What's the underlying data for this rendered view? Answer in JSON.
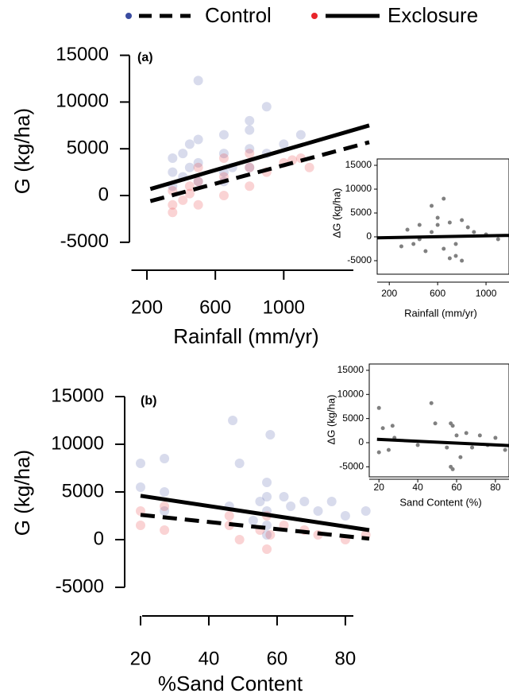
{
  "chart_data": [
    {
      "type": "scatter",
      "label": "(a)",
      "x_label": "Rainfall (mm/yr)",
      "y_label": "G (kg/ha)",
      "xlim": [
        100,
        1500
      ],
      "ylim": [
        -6000,
        15500
      ],
      "xticks": [
        200,
        600,
        1000
      ],
      "yticks": [
        -5000,
        0,
        5000,
        10000,
        15000
      ],
      "series": [
        {
          "name": "Control",
          "color": "#3a4ca0",
          "dash": true,
          "x": [
            350,
            350,
            350,
            410,
            410,
            450,
            450,
            500,
            500,
            500,
            650,
            650,
            650,
            700,
            800,
            800,
            800,
            900,
            900,
            1000,
            1100,
            500,
            800,
            650
          ],
          "values": [
            1000,
            2500,
            4000,
            2000,
            4500,
            3000,
            5500,
            1500,
            3500,
            6000,
            2500,
            4500,
            6500,
            3000,
            3000,
            5000,
            7000,
            4500,
            9500,
            5500,
            6500,
            12300,
            8000,
            1500
          ],
          "fit": {
            "x": [
              220,
              1500
            ],
            "values": [
              -600,
              5700
            ],
            "color": "#000000"
          }
        },
        {
          "name": "Exclosure",
          "color": "#e8252a",
          "dash": false,
          "x": [
            350,
            350,
            410,
            450,
            500,
            500,
            650,
            650,
            800,
            800,
            900,
            1000,
            1100,
            350,
            500,
            650,
            800,
            1150,
            450,
            1050
          ],
          "values": [
            -1800,
            500,
            -500,
            1000,
            -1000,
            1500,
            0,
            2000,
            1000,
            3000,
            2500,
            3500,
            4000,
            -1000,
            3000,
            4000,
            4500,
            3000,
            200,
            3800
          ],
          "fit": {
            "x": [
              220,
              1500
            ],
            "values": [
              700,
              7500
            ],
            "color": "#000000"
          }
        }
      ]
    },
    {
      "type": "scatter",
      "x_label": "Rainfall (mm/yr)",
      "y_label": "ΔG (kg/ha)",
      "xlim": [
        100,
        1190
      ],
      "ylim": [
        -7500,
        16500
      ],
      "xticks": [
        200,
        600,
        1000
      ],
      "yticks": [
        -5000,
        0,
        5000,
        10000,
        15000
      ],
      "series": [
        {
          "color": "#808080",
          "x": [
            300,
            350,
            400,
            450,
            500,
            550,
            600,
            650,
            700,
            750,
            800,
            850,
            900,
            1000,
            1100,
            550,
            650,
            700,
            800,
            750,
            600,
            450
          ],
          "values": [
            -2000,
            1500,
            -1500,
            2500,
            -3000,
            1000,
            4000,
            -2500,
            3000,
            -1500,
            -5000,
            2000,
            1000,
            500,
            -500,
            6500,
            8000,
            -4500,
            3500,
            -4000,
            2500,
            -500
          ],
          "fit": {
            "x": [
              100,
              1190
            ],
            "values": [
              -200,
              300
            ],
            "color": "#000000"
          }
        }
      ]
    },
    {
      "type": "scatter",
      "label": "(b)",
      "x_label": "%Sand Content",
      "y_label": "G (kg/ha)",
      "xlim": [
        20,
        87
      ],
      "ylim": [
        -6000,
        15500
      ],
      "xticks": [
        20,
        40,
        60,
        80
      ],
      "yticks": [
        -5000,
        0,
        5000,
        10000,
        15000
      ],
      "series": [
        {
          "color": "#3a4ca0",
          "dash": true,
          "x": [
            20,
            20,
            27,
            27,
            27,
            46,
            49,
            55,
            57,
            57,
            57,
            57,
            57,
            58,
            62,
            64,
            68,
            72,
            76,
            80,
            86,
            47,
            53
          ],
          "values": [
            5500,
            8000,
            5000,
            8500,
            3000,
            3500,
            8000,
            4000,
            6000,
            4500,
            3000,
            1500,
            500,
            11000,
            4500,
            3500,
            4000,
            3000,
            4000,
            2500,
            3000,
            12500,
            2000
          ],
          "fit": {
            "x": [
              20,
              87
            ],
            "values": [
              2600,
              100
            ],
            "color": "#000000"
          }
        },
        {
          "color": "#e8252a",
          "dash": false,
          "x": [
            20,
            20,
            27,
            27,
            46,
            46,
            49,
            55,
            57,
            57,
            58,
            62,
            68,
            72,
            80,
            86
          ],
          "values": [
            1500,
            3000,
            1000,
            3500,
            1500,
            2500,
            0,
            1000,
            -1000,
            2500,
            500,
            1500,
            1000,
            500,
            0,
            500
          ],
          "fit": {
            "x": [
              20,
              87
            ],
            "values": [
              4600,
              1000
            ],
            "color": "#000000"
          }
        }
      ]
    },
    {
      "type": "scatter",
      "x_label": "Sand Content (%)",
      "y_label": "ΔG (kg/ha)",
      "xlim": [
        15,
        87
      ],
      "ylim": [
        -7500,
        16000
      ],
      "xticks": [
        20,
        40,
        60,
        80
      ],
      "yticks": [
        -5000,
        0,
        5000,
        10000,
        15000
      ],
      "series": [
        {
          "color": "#808080",
          "x": [
            20,
            20,
            22,
            25,
            27,
            28,
            40,
            47,
            49,
            55,
            57,
            57,
            58,
            58,
            60,
            62,
            65,
            68,
            72,
            76,
            80,
            85
          ],
          "values": [
            7200,
            -2000,
            3000,
            -1500,
            3500,
            1000,
            -500,
            8200,
            4000,
            -1000,
            -5000,
            4000,
            3500,
            -5500,
            1500,
            -3000,
            2000,
            -1000,
            1500,
            -500,
            1000,
            -1500
          ],
          "fit": {
            "x": [
              19,
              87
            ],
            "values": [
              700,
              -600
            ],
            "color": "#000000"
          }
        }
      ]
    }
  ]
}
